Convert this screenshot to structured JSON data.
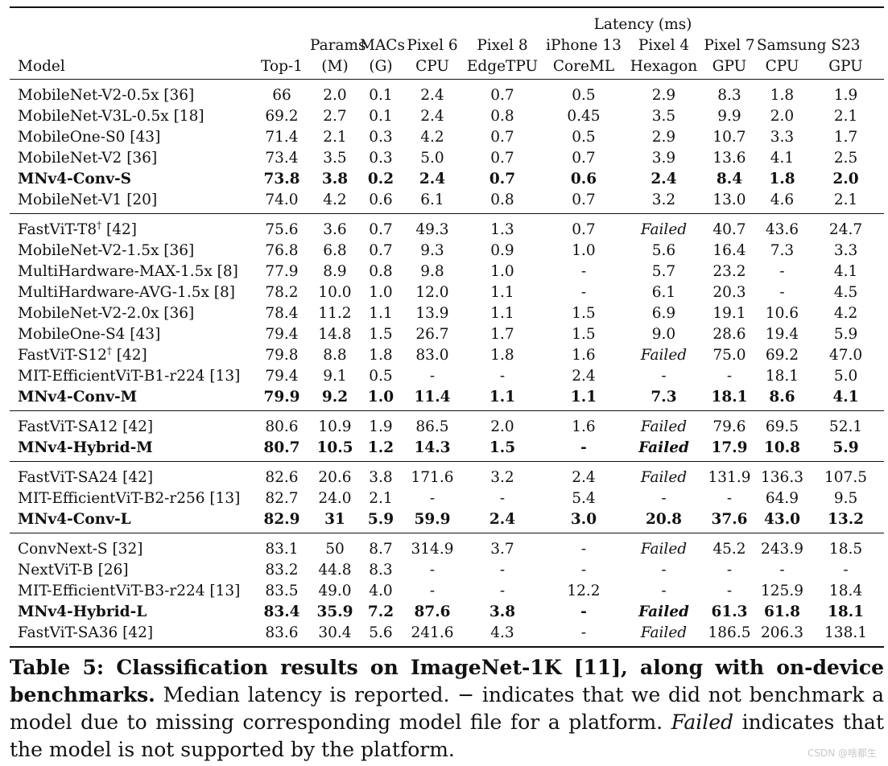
{
  "header": {
    "latency_group": "Latency (ms)",
    "row1": [
      "",
      "",
      "Params",
      "MACs",
      "Pixel 6",
      "Pixel 8",
      "iPhone 13",
      "Pixel 4",
      "Pixel 7",
      "Samsung S23",
      ""
    ],
    "row2": [
      "Model",
      "Top-1",
      "(M)",
      "(G)",
      "CPU",
      "EdgeTPU",
      "CoreML",
      "Hexagon",
      "GPU",
      "CPU",
      "GPU"
    ]
  },
  "groups": [
    {
      "rows": [
        {
          "model": "MobileNet-V2-0.5x [36]",
          "dagger": "",
          "bold": false,
          "values": [
            "66",
            "2.0",
            "0.1",
            "2.4",
            "0.7",
            "0.5",
            "2.9",
            "8.3",
            "1.8",
            "1.9"
          ]
        },
        {
          "model": "MobileNet-V3L-0.5x [18]",
          "dagger": "",
          "bold": false,
          "values": [
            "69.2",
            "2.7",
            "0.1",
            "2.4",
            "0.8",
            "0.45",
            "3.5",
            "9.9",
            "2.0",
            "2.1"
          ]
        },
        {
          "model": "MobileOne-S0 [43]",
          "dagger": "",
          "bold": false,
          "values": [
            "71.4",
            "2.1",
            "0.3",
            "4.2",
            "0.7",
            "0.5",
            "2.9",
            "10.7",
            "3.3",
            "1.7"
          ]
        },
        {
          "model": "MobileNet-V2 [36]",
          "dagger": "",
          "bold": false,
          "values": [
            "73.4",
            "3.5",
            "0.3",
            "5.0",
            "0.7",
            "0.7",
            "3.9",
            "13.6",
            "4.1",
            "2.5"
          ]
        },
        {
          "model": "MNv4-Conv-S",
          "dagger": "",
          "bold": true,
          "values": [
            "73.8",
            "3.8",
            "0.2",
            "2.4",
            "0.7",
            "0.6",
            "2.4",
            "8.4",
            "1.8",
            "2.0"
          ]
        },
        {
          "model": "MobileNet-V1 [20]",
          "dagger": "",
          "bold": false,
          "values": [
            "74.0",
            "4.2",
            "0.6",
            "6.1",
            "0.8",
            "0.7",
            "3.2",
            "13.0",
            "4.6",
            "2.1"
          ]
        }
      ]
    },
    {
      "rows": [
        {
          "model": "FastViT-T8",
          "dagger": "†",
          "model_suffix": " [42]",
          "bold": false,
          "values": [
            "75.6",
            "3.6",
            "0.7",
            "49.3",
            "1.3",
            "0.7",
            "Failed",
            "40.7",
            "43.6",
            "24.7"
          ]
        },
        {
          "model": "MobileNet-V2-1.5x [36]",
          "dagger": "",
          "bold": false,
          "values": [
            "76.8",
            "6.8",
            "0.7",
            "9.3",
            "0.9",
            "1.0",
            "5.6",
            "16.4",
            "7.3",
            "3.3"
          ]
        },
        {
          "model": "MultiHardware-MAX-1.5x [8]",
          "dagger": "",
          "bold": false,
          "values": [
            "77.9",
            "8.9",
            "0.8",
            "9.8",
            "1.0",
            "-",
            "5.7",
            "23.2",
            "-",
            "4.1"
          ]
        },
        {
          "model": "MultiHardware-AVG-1.5x [8]",
          "dagger": "",
          "bold": false,
          "values": [
            "78.2",
            "10.0",
            "1.0",
            "12.0",
            "1.1",
            "-",
            "6.1",
            "20.3",
            "-",
            "4.5"
          ]
        },
        {
          "model": "MobileNet-V2-2.0x [36]",
          "dagger": "",
          "bold": false,
          "values": [
            "78.4",
            "11.2",
            "1.1",
            "13.9",
            "1.1",
            "1.5",
            "6.9",
            "19.1",
            "10.6",
            "4.2"
          ]
        },
        {
          "model": "MobileOne-S4 [43]",
          "dagger": "",
          "bold": false,
          "values": [
            "79.4",
            "14.8",
            "1.5",
            "26.7",
            "1.7",
            "1.5",
            "9.0",
            "28.6",
            "19.4",
            "5.9"
          ]
        },
        {
          "model": "FastViT-S12",
          "dagger": "†",
          "model_suffix": " [42]",
          "bold": false,
          "values": [
            "79.8",
            "8.8",
            "1.8",
            "83.0",
            "1.8",
            "1.6",
            "Failed",
            "75.0",
            "69.2",
            "47.0"
          ]
        },
        {
          "model": "MIT-EfficientViT-B1-r224 [13]",
          "dagger": "",
          "bold": false,
          "values": [
            "79.4",
            "9.1",
            "0.5",
            "-",
            "-",
            "2.4",
            "-",
            "-",
            "18.1",
            "5.0"
          ]
        },
        {
          "model": "MNv4-Conv-M",
          "dagger": "",
          "bold": true,
          "values": [
            "79.9",
            "9.2",
            "1.0",
            "11.4",
            "1.1",
            "1.1",
            "7.3",
            "18.1",
            "8.6",
            "4.1"
          ]
        }
      ]
    },
    {
      "rows": [
        {
          "model": "FastViT-SA12 [42]",
          "dagger": "",
          "bold": false,
          "values": [
            "80.6",
            "10.9",
            "1.9",
            "86.5",
            "2.0",
            "1.6",
            "Failed",
            "79.6",
            "69.5",
            "52.1"
          ]
        },
        {
          "model": "MNv4-Hybrid-M",
          "dagger": "",
          "bold": true,
          "values": [
            "80.7",
            "10.5",
            "1.2",
            "14.3",
            "1.5",
            "-",
            "Failed",
            "17.9",
            "10.8",
            "5.9"
          ]
        }
      ]
    },
    {
      "rows": [
        {
          "model": "FastViT-SA24 [42]",
          "dagger": "",
          "bold": false,
          "values": [
            "82.6",
            "20.6",
            "3.8",
            "171.6",
            "3.2",
            "2.4",
            "Failed",
            "131.9",
            "136.3",
            "107.5"
          ]
        },
        {
          "model": "MIT-EfficientViT-B2-r256 [13]",
          "dagger": "",
          "bold": false,
          "values": [
            "82.7",
            "24.0",
            "2.1",
            "-",
            "-",
            "5.4",
            "-",
            "-",
            "64.9",
            "9.5"
          ]
        },
        {
          "model": "MNv4-Conv-L",
          "dagger": "",
          "bold": true,
          "values": [
            "82.9",
            "31",
            "5.9",
            "59.9",
            "2.4",
            "3.0",
            "20.8",
            "37.6",
            "43.0",
            "13.2"
          ]
        }
      ]
    },
    {
      "rows": [
        {
          "model": "ConvNext-S [32]",
          "dagger": "",
          "bold": false,
          "values": [
            "83.1",
            "50",
            "8.7",
            "314.9",
            "3.7",
            "-",
            "Failed",
            "45.2",
            "243.9",
            "18.5"
          ]
        },
        {
          "model": "NextViT-B [26]",
          "dagger": "",
          "bold": false,
          "values": [
            "83.2",
            "44.8",
            "8.3",
            "-",
            "-",
            "-",
            "-",
            "-",
            "-",
            "-"
          ]
        },
        {
          "model": "MIT-EfficientViT-B3-r224 [13]",
          "dagger": "",
          "bold": false,
          "values": [
            "83.5",
            "49.0",
            "4.0",
            "-",
            "-",
            "12.2",
            "-",
            "-",
            "125.9",
            "18.4"
          ]
        },
        {
          "model": "MNv4-Hybrid-L",
          "dagger": "",
          "bold": true,
          "values": [
            "83.4",
            "35.9",
            "7.2",
            "87.6",
            "3.8",
            "-",
            "Failed",
            "61.3",
            "61.8",
            "18.1"
          ]
        },
        {
          "model": "FastViT-SA36 [42]",
          "dagger": "",
          "bold": false,
          "values": [
            "83.6",
            "30.4",
            "5.6",
            "241.6",
            "4.3",
            "-",
            "Failed",
            "186.5",
            "206.3",
            "138.1"
          ]
        }
      ]
    }
  ],
  "caption": {
    "bold": "Table 5: Classification results on ImageNet-1K [11], along with on-device benchmarks.",
    "part1": " Median latency is reported. − indicates that we did not benchmark a model due to missing corresponding model file for a platform. ",
    "italic": "Failed",
    "part2": " indicates that the model is not supported by the platform."
  },
  "watermark": "CSDN @啥都生"
}
